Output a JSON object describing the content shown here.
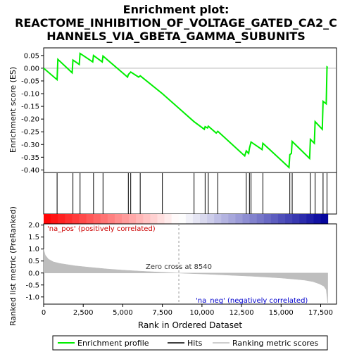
{
  "chart_data": {
    "type": "line",
    "title": "Enrichment plot:\nREACTOME_INHIBITION_OF_VOLTAGE_GATED_CA2_C\nHANNELS_VIA_GBETA_GAMMA_SUBUNITS",
    "title_lines": [
      "Enrichment plot:",
      "REACTOME_INHIBITION_OF_VOLTAGE_GATED_CA2_C",
      "HANNELS_VIA_GBETA_GAMMA_SUBUNITS"
    ],
    "xlabel": "Rank in Ordered Dataset",
    "es_panel": {
      "ylabel": "Enrichment score (ES)",
      "ylim": [
        -0.41,
        0.08
      ],
      "yticks": [
        0.05,
        0.0,
        -0.05,
        -0.1,
        -0.15,
        -0.2,
        -0.25,
        -0.3,
        -0.35,
        -0.4
      ],
      "ytick_labels": [
        "0.05",
        "0.00",
        "-0.05",
        "-0.10",
        "-0.15",
        "-0.20",
        "-0.25",
        "-0.30",
        "-0.35",
        "-0.40"
      ],
      "series_name": "Enrichment profile",
      "color": "#00ee00",
      "points": [
        [
          0,
          0.0
        ],
        [
          850,
          -0.045
        ],
        [
          900,
          0.035
        ],
        [
          1800,
          -0.018
        ],
        [
          1850,
          0.032
        ],
        [
          2250,
          0.015
        ],
        [
          2300,
          0.058
        ],
        [
          3100,
          0.025
        ],
        [
          3150,
          0.05
        ],
        [
          3700,
          0.025
        ],
        [
          3750,
          0.048
        ],
        [
          5300,
          -0.035
        ],
        [
          5350,
          -0.025
        ],
        [
          5500,
          -0.015
        ],
        [
          6000,
          -0.035
        ],
        [
          6100,
          -0.03
        ],
        [
          7500,
          -0.1
        ],
        [
          9500,
          -0.21
        ],
        [
          10150,
          -0.24
        ],
        [
          10200,
          -0.23
        ],
        [
          10350,
          -0.235
        ],
        [
          10400,
          -0.228
        ],
        [
          10900,
          -0.255
        ],
        [
          11000,
          -0.248
        ],
        [
          12700,
          -0.345
        ],
        [
          12800,
          -0.325
        ],
        [
          12950,
          -0.335
        ],
        [
          13000,
          -0.315
        ],
        [
          13100,
          -0.29
        ],
        [
          13800,
          -0.32
        ],
        [
          13850,
          -0.295
        ],
        [
          15500,
          -0.39
        ],
        [
          15550,
          -0.34
        ],
        [
          15650,
          -0.335
        ],
        [
          15700,
          -0.288
        ],
        [
          16800,
          -0.355
        ],
        [
          16850,
          -0.28
        ],
        [
          17100,
          -0.295
        ],
        [
          17150,
          -0.21
        ],
        [
          17600,
          -0.24
        ],
        [
          17650,
          -0.13
        ],
        [
          17850,
          -0.14
        ],
        [
          17900,
          0.005
        ],
        [
          17950,
          0.003
        ]
      ]
    },
    "hits": [
      850,
      1850,
      2300,
      3150,
      3750,
      5350,
      5500,
      6100,
      7500,
      9500,
      10200,
      10400,
      11000,
      12800,
      13000,
      13100,
      13850,
      15550,
      15700,
      16850,
      17150,
      17650,
      17900
    ],
    "rank_panel": {
      "ylabel": "Ranked list metric (PreRanked)",
      "ylim": [
        -1.3,
        2.05
      ],
      "yticks": [
        2.0,
        1.5,
        1.0,
        0.5,
        0.0,
        -0.5,
        -1.0
      ],
      "ytick_labels": [
        "2.0",
        "1.5",
        "1.0",
        "0.5",
        "0.0",
        "-0.5",
        "-1.0"
      ],
      "profile": [
        [
          0,
          1.0
        ],
        [
          100,
          0.75
        ],
        [
          300,
          0.58
        ],
        [
          600,
          0.47
        ],
        [
          1000,
          0.4
        ],
        [
          2000,
          0.3
        ],
        [
          3000,
          0.23
        ],
        [
          4000,
          0.17
        ],
        [
          5000,
          0.12
        ],
        [
          6000,
          0.08
        ],
        [
          7000,
          0.045
        ],
        [
          8000,
          0.015
        ],
        [
          8540,
          0.0
        ],
        [
          9000,
          -0.015
        ],
        [
          10000,
          -0.04
        ],
        [
          11000,
          -0.07
        ],
        [
          12000,
          -0.1
        ],
        [
          13000,
          -0.13
        ],
        [
          14000,
          -0.17
        ],
        [
          15000,
          -0.21
        ],
        [
          16000,
          -0.27
        ],
        [
          16500,
          -0.3
        ],
        [
          17000,
          -0.36
        ],
        [
          17400,
          -0.45
        ],
        [
          17700,
          -0.55
        ],
        [
          17850,
          -0.7
        ],
        [
          17950,
          -1.3
        ]
      ],
      "color": "#bebebe",
      "zero_cross_label": "Zero cross at 8540",
      "zero_cross": 8540,
      "pos_label": "'na_pos' (positively correlated)",
      "neg_label": "'na_neg' (negatively correlated)",
      "pos_label_color": "#cc0000",
      "neg_label_color": "#0000cc"
    },
    "xlim": [
      0,
      18500
    ],
    "xticks": [
      0,
      2500,
      5000,
      7500,
      10000,
      12500,
      15000,
      17500
    ],
    "xtick_labels": [
      "0",
      "2,500",
      "5,000",
      "7,500",
      "10,000",
      "12,500",
      "15,000",
      "17,500"
    ],
    "n_genes": 17950,
    "legend": [
      {
        "name": "Enrichment profile",
        "color": "#00ee00"
      },
      {
        "name": "Hits",
        "color": "#000000"
      },
      {
        "name": "Ranking metric scores",
        "color": "#bebebe"
      }
    ],
    "legend_position": "bottom"
  }
}
